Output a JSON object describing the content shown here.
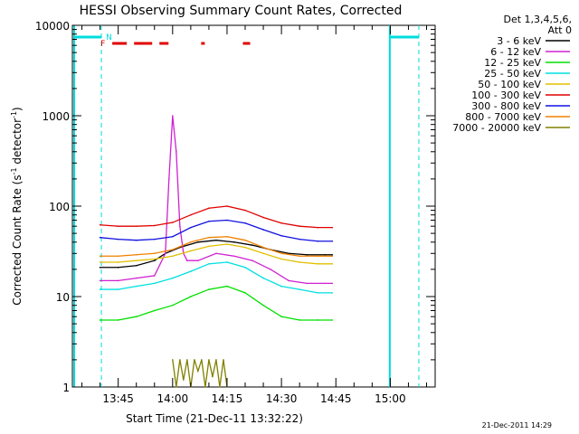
{
  "chart_data": {
    "type": "line",
    "title": "HESSI Observing Summary Count Rates, Corrected",
    "xlabel": "Start Time (21-Dec-11 13:32:22)",
    "ylabel_main": "Corrected Count Rate (s",
    "ylabel_sup1": "-1",
    "ylabel_mid": " detector",
    "ylabel_sup2": "-1",
    "ylabel_end": ")",
    "y_scale": "log",
    "ylim": [
      1,
      10000
    ],
    "xlim": [
      "13:32:22",
      "15:12:22"
    ],
    "y_ticks": [
      1,
      10,
      100,
      1000,
      10000
    ],
    "y_tick_labels": [
      "1",
      "10",
      "100",
      "1000",
      "10000"
    ],
    "x_ticks_min": [
      45,
      60,
      75,
      90,
      105,
      120
    ],
    "x_tick_labels": [
      "13:45",
      "14:00",
      "14:15",
      "14:30",
      "14:45",
      "15:00"
    ],
    "legend_header": [
      "Det 1,3,4,5,6,",
      "Att 0"
    ],
    "legend_position": "top-right, outside plot",
    "series": [
      {
        "name": "3 - 6 keV",
        "color": "#000000",
        "x": [
          40,
          45,
          50,
          55,
          58,
          62,
          67,
          72,
          77,
          82,
          87,
          92,
          97,
          102,
          104
        ],
        "y": [
          21,
          21,
          22,
          25,
          30,
          35,
          40,
          42,
          40,
          37,
          33,
          30,
          29,
          29,
          29
        ]
      },
      {
        "name": "6 - 12 keV",
        "color": "#d020d0",
        "x": [
          40,
          45,
          50,
          55,
          58,
          59,
          60,
          61,
          62,
          63,
          64,
          67,
          72,
          77,
          82,
          87,
          92,
          97,
          102,
          104
        ],
        "y": [
          15,
          15,
          16,
          17,
          30,
          200,
          1000,
          400,
          60,
          30,
          25,
          25,
          30,
          28,
          25,
          20,
          15,
          14,
          14,
          14
        ]
      },
      {
        "name": "12 - 25 keV",
        "color": "#00e000",
        "x": [
          40,
          45,
          50,
          55,
          60,
          65,
          70,
          75,
          80,
          85,
          90,
          95,
          100,
          104
        ],
        "y": [
          5.5,
          5.5,
          6,
          7,
          8,
          10,
          12,
          13,
          11,
          8,
          6,
          5.5,
          5.5,
          5.5
        ]
      },
      {
        "name": "25 - 50 keV",
        "color": "#00e0e0",
        "x": [
          40,
          45,
          50,
          55,
          60,
          65,
          70,
          75,
          80,
          85,
          90,
          95,
          100,
          104
        ],
        "y": [
          12,
          12,
          13,
          14,
          16,
          19,
          23,
          24,
          21,
          16,
          13,
          12,
          11,
          11
        ]
      },
      {
        "name": "50 - 100 keV",
        "color": "#e0c000",
        "x": [
          40,
          45,
          50,
          55,
          60,
          65,
          70,
          75,
          80,
          85,
          90,
          95,
          100,
          104
        ],
        "y": [
          24,
          24,
          25,
          26,
          28,
          32,
          36,
          38,
          35,
          30,
          26,
          24,
          23,
          23
        ]
      },
      {
        "name": "100 - 300 keV",
        "color": "#e00000",
        "x": [
          40,
          45,
          50,
          55,
          60,
          65,
          70,
          75,
          80,
          85,
          90,
          95,
          100,
          104
        ],
        "y": [
          62,
          60,
          60,
          61,
          66,
          80,
          95,
          100,
          90,
          75,
          65,
          60,
          58,
          58
        ]
      },
      {
        "name": "300 - 800 keV",
        "color": "#1010e0",
        "x": [
          40,
          45,
          50,
          55,
          60,
          65,
          70,
          75,
          80,
          85,
          90,
          95,
          100,
          104
        ],
        "y": [
          45,
          43,
          42,
          43,
          46,
          58,
          68,
          70,
          65,
          55,
          47,
          43,
          41,
          41
        ]
      },
      {
        "name": "800 - 7000 keV",
        "color": "#f08000",
        "x": [
          40,
          45,
          50,
          55,
          60,
          65,
          70,
          75,
          80,
          85,
          90,
          95,
          100,
          104
        ],
        "y": [
          28,
          28,
          29,
          30,
          33,
          40,
          45,
          46,
          42,
          35,
          30,
          28,
          28,
          28
        ]
      },
      {
        "name": "7000 - 20000 keV",
        "color": "#808000",
        "x": [
          60,
          61,
          62,
          63,
          64,
          65,
          66,
          67,
          68,
          69,
          70,
          71,
          72,
          73,
          74,
          75
        ],
        "y": [
          2,
          1,
          2,
          1.2,
          2,
          1,
          2,
          1.5,
          2,
          1,
          2,
          1.3,
          2,
          1,
          2,
          1
        ]
      }
    ],
    "flag_markers": {
      "label_N": "N",
      "label_F": "F"
    }
  }
}
